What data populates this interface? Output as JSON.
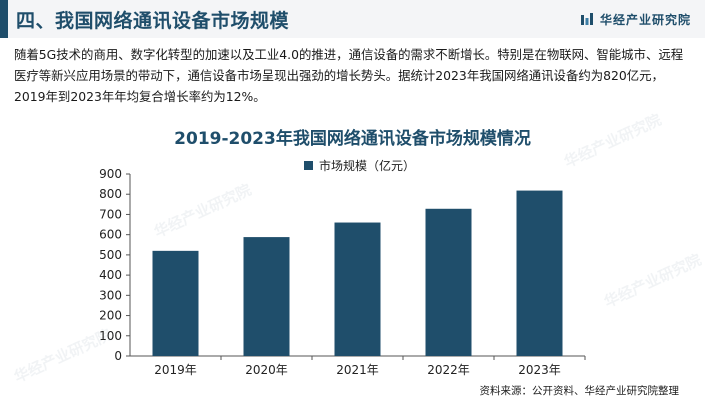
{
  "header": {
    "title": "四、我国网络通讯设备市场规模",
    "brand": "华经产业研究院",
    "accent_color": "#1f4e6b"
  },
  "paragraph": "随着5G技术的商用、数字化转型的加速以及工业4.0的推进，通信设备的需求不断增长。特别是在物联网、智能城市、远程医疗等新兴应用场景的带动下，通信设备市场呈现出强劲的增长势头。据统计2023年我国网络通讯设备约为820亿元，2019年到2023年年均复合增长率约为12%。",
  "watermark_text": "华经产业研究院",
  "chart_data": {
    "type": "bar",
    "title": "2019-2023年我国网络通讯设备市场规模情况",
    "categories": [
      "2019年",
      "2020年",
      "2021年",
      "2022年",
      "2023年"
    ],
    "series": [
      {
        "name": "市场规模（亿元）",
        "values": [
          520,
          588,
          660,
          728,
          818
        ],
        "color": "#1f4e6b"
      }
    ],
    "ylim": [
      0,
      900
    ],
    "yticks": [
      0,
      100,
      200,
      300,
      400,
      500,
      600,
      700,
      800,
      900
    ],
    "grid": false,
    "legend": "top-center"
  },
  "source": "资料来源：公开资料、华经产业研究院整理"
}
